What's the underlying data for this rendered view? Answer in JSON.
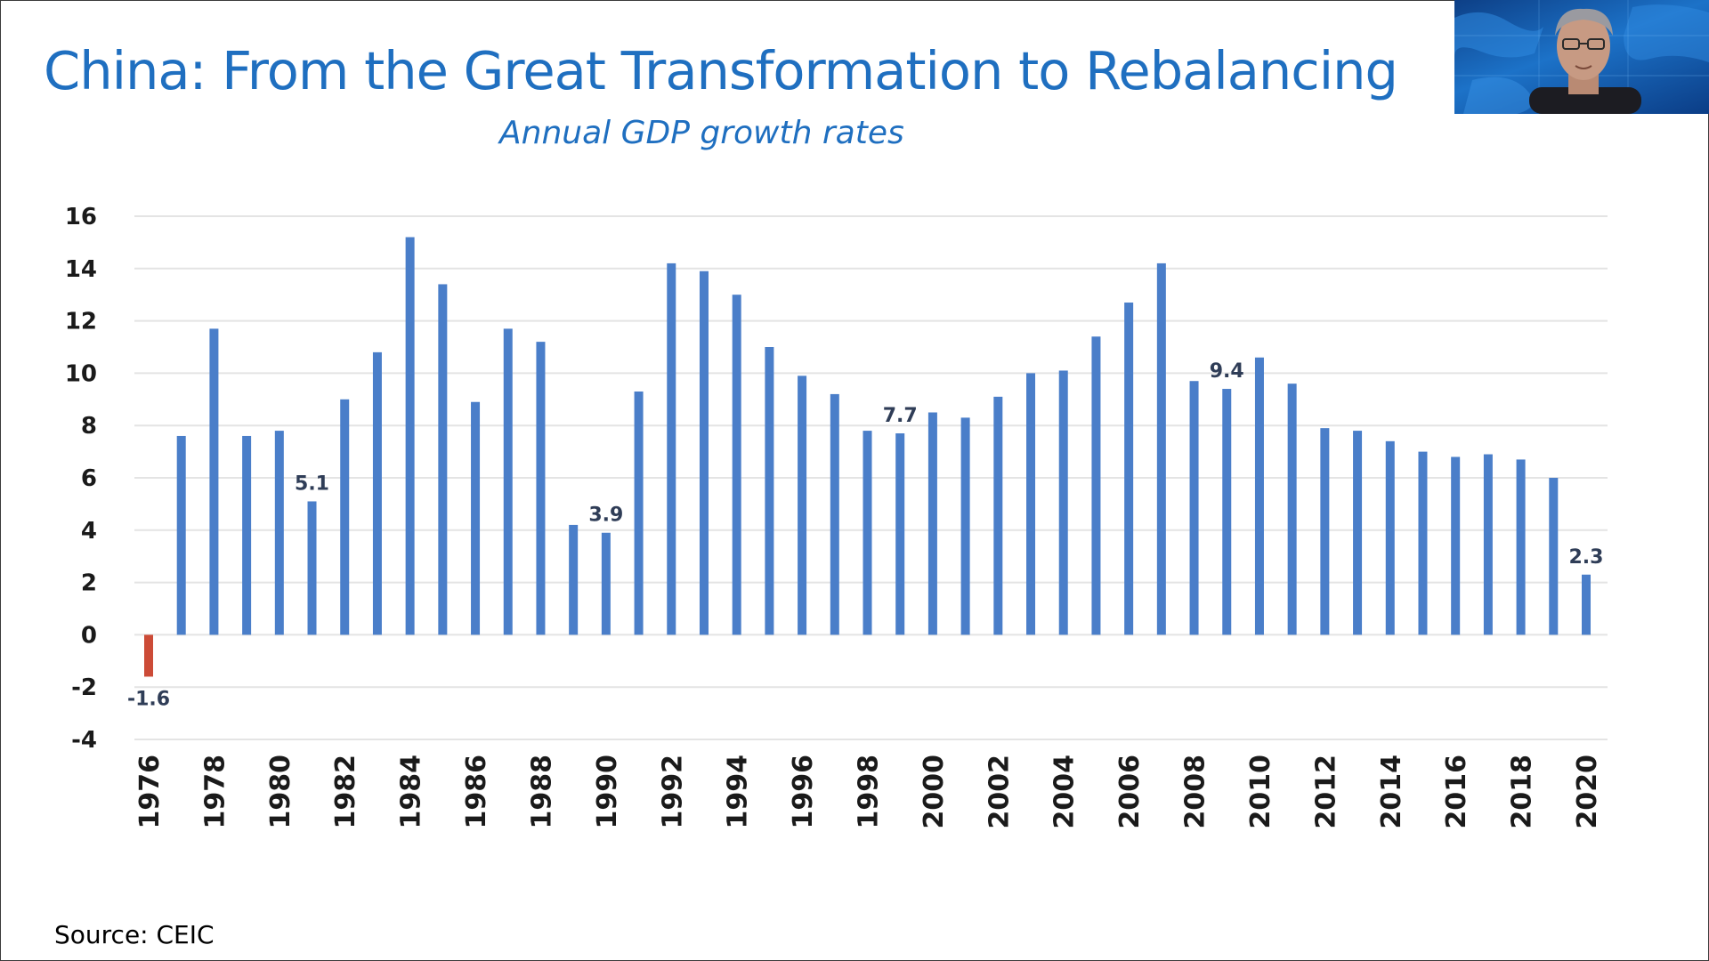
{
  "slide": {
    "title": "China: From the Great Transformation to Rebalancing",
    "subtitle": "Annual GDP growth rates",
    "source": "Source: CEIC"
  },
  "colors": {
    "title": "#1f6fc0",
    "bar": "#4a7ec9",
    "negative_bar": "#cc4b37",
    "annotation": "#2f3d57",
    "axis_text": "#1a1a1a",
    "grid": "#e4e4e4"
  },
  "chart_data": {
    "type": "bar",
    "title": "Annual GDP growth rates",
    "xlabel": "",
    "ylabel": "",
    "ylim": [
      -4,
      16
    ],
    "yticks": [
      16,
      14,
      12,
      10,
      8,
      6,
      4,
      2,
      0,
      -2,
      -4
    ],
    "grid": true,
    "legend": "none",
    "categories": [
      "1976",
      "1977",
      "1978",
      "1979",
      "1980",
      "1981",
      "1982",
      "1983",
      "1984",
      "1985",
      "1986",
      "1987",
      "1988",
      "1989",
      "1990",
      "1991",
      "1992",
      "1993",
      "1994",
      "1995",
      "1996",
      "1997",
      "1998",
      "1999",
      "2000",
      "2001",
      "2002",
      "2003",
      "2004",
      "2005",
      "2006",
      "2007",
      "2008",
      "2009",
      "2010",
      "2011",
      "2012",
      "2013",
      "2014",
      "2015",
      "2016",
      "2017",
      "2018",
      "2019",
      "2020"
    ],
    "xtick_labels": [
      "1976",
      "1978",
      "1980",
      "1982",
      "1984",
      "1986",
      "1988",
      "1990",
      "1992",
      "1994",
      "1996",
      "1998",
      "2000",
      "2002",
      "2004",
      "2006",
      "2008",
      "2010",
      "2012",
      "2014",
      "2016",
      "2018",
      "2020"
    ],
    "values": [
      -1.6,
      7.6,
      11.7,
      7.6,
      7.8,
      5.1,
      9.0,
      10.8,
      15.2,
      13.4,
      8.9,
      11.7,
      11.2,
      4.2,
      3.9,
      9.3,
      14.2,
      13.9,
      13.0,
      11.0,
      9.9,
      9.2,
      7.8,
      7.7,
      8.5,
      8.3,
      9.1,
      10.0,
      10.1,
      11.4,
      12.7,
      14.2,
      9.7,
      9.4,
      10.6,
      9.6,
      7.9,
      7.8,
      7.4,
      7.0,
      6.8,
      6.9,
      6.7,
      6.0,
      2.3
    ],
    "annotations": [
      {
        "year": "1976",
        "label": "-1.6"
      },
      {
        "year": "1981",
        "label": "5.1"
      },
      {
        "year": "1990",
        "label": "3.9"
      },
      {
        "year": "1999",
        "label": "7.7"
      },
      {
        "year": "2009",
        "label": "9.4"
      },
      {
        "year": "2020",
        "label": "2.3"
      }
    ]
  },
  "webcam": {
    "icon": "presenter-video-icon"
  }
}
